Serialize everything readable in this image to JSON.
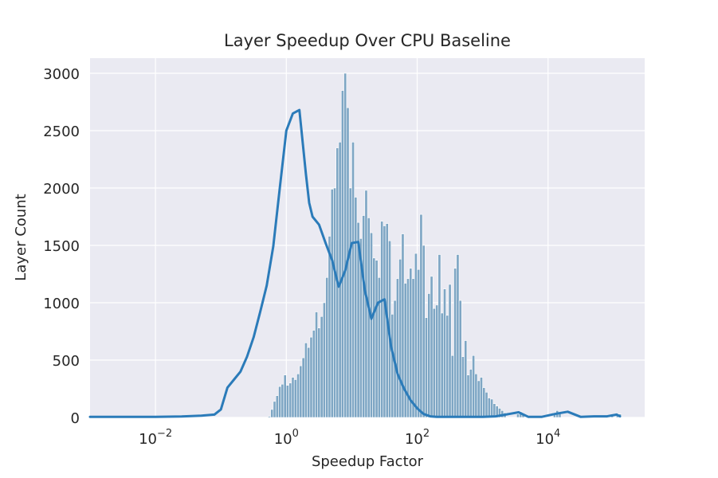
{
  "chart_data": {
    "type": "histogram",
    "title": "Layer Speedup Over CPU Baseline",
    "xlabel": "Speedup Factor",
    "ylabel": "Layer Count",
    "x_scale": "log",
    "xlim": [
      0.001,
      300000
    ],
    "ylim": [
      0,
      3000
    ],
    "x_ticks": [
      {
        "value": 0.01,
        "base": "10",
        "exp": "−2"
      },
      {
        "value": 1,
        "base": "10",
        "exp": "0"
      },
      {
        "value": 100,
        "base": "10",
        "exp": "2"
      },
      {
        "value": 10000,
        "base": "10",
        "exp": "4"
      }
    ],
    "y_ticks": [
      0,
      500,
      1000,
      1500,
      2000,
      2500,
      3000
    ],
    "grid": true,
    "colors": {
      "background": "#eaeaf2",
      "bar_fill": "#7ea6c4",
      "bar_edge": "#ffffff",
      "kde_line": "#2b7bb9",
      "grid": "#ffffff"
    },
    "bins": {
      "log10_start": -3.0,
      "log10_width": 0.04,
      "counts": [
        0,
        0,
        0,
        0,
        0,
        0,
        0,
        0,
        0,
        0,
        0,
        0,
        0,
        0,
        0,
        0,
        0,
        0,
        0,
        0,
        0,
        0,
        0,
        0,
        0,
        0,
        0,
        0,
        0,
        0,
        0,
        0,
        0,
        0,
        0,
        0,
        0,
        0,
        0,
        0,
        0,
        0,
        0,
        0,
        0,
        0,
        0,
        0,
        0,
        0,
        0,
        0,
        0,
        0,
        0,
        0,
        0,
        0,
        0,
        0,
        0,
        0,
        0,
        0,
        0,
        0,
        0,
        0,
        10,
        70,
        140,
        190,
        270,
        290,
        370,
        280,
        300,
        350,
        330,
        380,
        450,
        520,
        650,
        610,
        700,
        760,
        920,
        780,
        880,
        1000,
        1220,
        1580,
        1990,
        2000,
        2350,
        2400,
        2850,
        3000,
        2700,
        2000,
        2400,
        1920,
        1700,
        1560,
        1760,
        1980,
        1740,
        1610,
        1390,
        1370,
        1220,
        1710,
        1670,
        1690,
        1540,
        900,
        1020,
        1210,
        1380,
        1600,
        1170,
        1210,
        1300,
        1210,
        1430,
        1290,
        1770,
        1500,
        870,
        1080,
        1230,
        950,
        980,
        1420,
        910,
        1120,
        890,
        1160,
        540,
        1300,
        1420,
        1020,
        530,
        670,
        370,
        420,
        540,
        380,
        320,
        350,
        260,
        220,
        170,
        160,
        120,
        100,
        80,
        60,
        40,
        0
      ],
      "extra_bins": [
        {
          "log10": 3.52,
          "count": 30
        },
        {
          "log10": 3.56,
          "count": 50
        },
        {
          "log10": 3.6,
          "count": 30
        },
        {
          "log10": 4.08,
          "count": 40
        },
        {
          "log10": 4.12,
          "count": 60
        },
        {
          "log10": 4.16,
          "count": 40
        },
        {
          "log10": 4.52,
          "count": 15
        },
        {
          "log10": 4.72,
          "count": 15
        },
        {
          "log10": 4.96,
          "count": 20
        },
        {
          "log10": 5.04,
          "count": 30
        },
        {
          "log10": 5.08,
          "count": 30
        }
      ]
    },
    "kde": {
      "log10_x": [
        -3.0,
        -2.5,
        -2.0,
        -1.6,
        -1.3,
        -1.1,
        -1.0,
        -0.9,
        -0.8,
        -0.7,
        -0.6,
        -0.5,
        -0.4,
        -0.3,
        -0.2,
        -0.1,
        0.0,
        0.1,
        0.2,
        0.3,
        0.35,
        0.4,
        0.5,
        0.6,
        0.7,
        0.8,
        0.9,
        1.0,
        1.1,
        1.2,
        1.3,
        1.4,
        1.5,
        1.6,
        1.7,
        1.8,
        1.9,
        2.0,
        2.1,
        2.2,
        2.3,
        2.4,
        2.5,
        2.6,
        2.8,
        3.0,
        3.2,
        3.4,
        3.55,
        3.7,
        3.9,
        4.1,
        4.3,
        4.5,
        4.7,
        4.9,
        5.05,
        5.1
      ],
      "y": [
        5,
        5,
        5,
        8,
        15,
        25,
        70,
        260,
        330,
        400,
        530,
        700,
        920,
        1150,
        1490,
        2000,
        2500,
        2650,
        2680,
        2120,
        1870,
        1750,
        1680,
        1520,
        1370,
        1140,
        1280,
        1520,
        1530,
        1110,
        860,
        1000,
        1030,
        620,
        380,
        250,
        150,
        80,
        30,
        10,
        5,
        5,
        5,
        5,
        5,
        5,
        10,
        30,
        45,
        5,
        5,
        30,
        50,
        5,
        10,
        10,
        25,
        10
      ]
    }
  }
}
